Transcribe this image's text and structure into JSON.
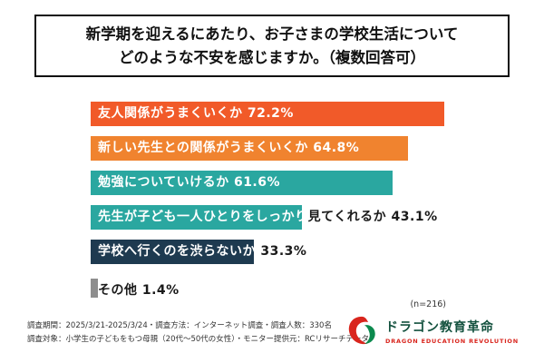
{
  "title": {
    "line1": "新学期を迎えるにあたり、お子さまの学校生活について",
    "line2": "どのような不安を感じますか。（複数回答可）"
  },
  "chart_data": {
    "type": "bar",
    "orientation": "horizontal",
    "title": "新学期を迎えるにあたり、お子さまの学校生活についてどのような不安を感じますか。（複数回答可）",
    "xlabel": "",
    "ylabel": "",
    "xlim": [
      0,
      75
    ],
    "unit": "%",
    "n_label": "(n=216)",
    "categories": [
      "友人関係がうまくいくか",
      "新しい先生との関係がうまくいくか",
      "勉強についていけるか",
      "先生が子ども一人ひとりをしっかり見てくれるか",
      "学校へ行くのを渋らないか",
      "その他"
    ],
    "values": [
      72.2,
      64.8,
      61.6,
      43.1,
      33.3,
      1.4
    ],
    "value_labels": [
      "72.2%",
      "64.8%",
      "61.6%",
      "43.1%",
      "33.3%",
      "1.4%"
    ],
    "bar_colors": [
      "#f15a29",
      "#f0832f",
      "#2aa7a0",
      "#2aa7a0",
      "#1e3a50",
      "#8e8e8e"
    ],
    "rows": [
      {
        "label": "友人関係がうまくいくか",
        "value": 72.2,
        "color": "#f15a29",
        "text_inside": "友人関係がうまくいくか 72.2%",
        "text_outside": ""
      },
      {
        "label": "新しい先生との関係がうまくいくか",
        "value": 64.8,
        "color": "#f0832f",
        "text_inside": "新しい先生との関係がうまくいくか 64.8%",
        "text_outside": ""
      },
      {
        "label": "勉強についていけるか",
        "value": 61.6,
        "color": "#2aa7a0",
        "text_inside": "勉強についていけるか 61.6%",
        "text_outside": ""
      },
      {
        "label": "先生が子ども一人ひとりをしっかり見てくれるか",
        "value": 43.1,
        "color": "#2aa7a0",
        "text_inside": "先生が子ども一人ひとりをしっかり",
        "text_outside": "見てくれるか 43.1%"
      },
      {
        "label": "学校へ行くのを渋らないか",
        "value": 33.3,
        "color": "#1e3a50",
        "text_inside": "学校へ行くのを渋らないか",
        "text_outside": " 33.3%"
      },
      {
        "label": "その他",
        "value": 1.4,
        "color": "#8e8e8e",
        "text_inside": "",
        "text_outside": "その他 1.4%"
      }
    ]
  },
  "footer": {
    "line1": "調査期間：2025/3/21-2025/3/24・調査方法：インターネット調査・調査人数：330名",
    "line2": "調査対象：小学生の子どもをもつ母親（20代〜50代の女性）・モニター提供元：RCリサーチデータ"
  },
  "logo": {
    "jp": "ドラゴン教育革命",
    "en": "DRAGON EDUCATION REVOLUTION"
  }
}
